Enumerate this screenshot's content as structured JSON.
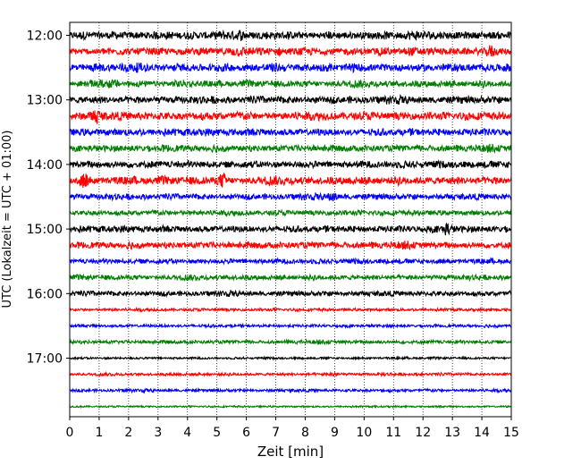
{
  "chart_data": {
    "type": "line",
    "title": "",
    "xlabel": "Zeit  [min]",
    "ylabel": "UTC (Lokalzeit = UTC + 01:00)",
    "xlim": [
      0,
      15
    ],
    "x_ticks": [
      "0",
      "1",
      "2",
      "3",
      "4",
      "5",
      "6",
      "7",
      "8",
      "9",
      "10",
      "11",
      "12",
      "13",
      "14",
      "15"
    ],
    "y_ticks": [
      "12:00",
      "13:00",
      "14:00",
      "15:00",
      "16:00",
      "17:00"
    ],
    "grid": "vertical dotted lines at each minute",
    "legend": "none",
    "color_cycle": [
      "#000000",
      "#ff0000",
      "#0000ff",
      "#008000"
    ],
    "series": [
      {
        "start": "12:00",
        "color": "#000000",
        "amplitude": 0.55
      },
      {
        "start": "12:15",
        "color": "#ff0000",
        "amplitude": 0.5
      },
      {
        "start": "12:30",
        "color": "#0000ff",
        "amplitude": 0.55
      },
      {
        "start": "12:45",
        "color": "#008000",
        "amplitude": 0.45
      },
      {
        "start": "13:00",
        "color": "#000000",
        "amplitude": 0.5
      },
      {
        "start": "13:15",
        "color": "#ff0000",
        "amplitude": 0.55
      },
      {
        "start": "13:30",
        "color": "#0000ff",
        "amplitude": 0.5
      },
      {
        "start": "13:45",
        "color": "#008000",
        "amplitude": 0.45
      },
      {
        "start": "14:00",
        "color": "#000000",
        "amplitude": 0.5
      },
      {
        "start": "14:15",
        "color": "#ff0000",
        "amplitude": 0.55
      },
      {
        "start": "14:30",
        "color": "#0000ff",
        "amplitude": 0.4
      },
      {
        "start": "14:45",
        "color": "#008000",
        "amplitude": 0.35
      },
      {
        "start": "15:00",
        "color": "#000000",
        "amplitude": 0.45
      },
      {
        "start": "15:15",
        "color": "#ff0000",
        "amplitude": 0.45
      },
      {
        "start": "15:30",
        "color": "#0000ff",
        "amplitude": 0.35
      },
      {
        "start": "15:45",
        "color": "#008000",
        "amplitude": 0.35
      },
      {
        "start": "16:00",
        "color": "#000000",
        "amplitude": 0.35
      },
      {
        "start": "16:15",
        "color": "#ff0000",
        "amplitude": 0.2
      },
      {
        "start": "16:30",
        "color": "#0000ff",
        "amplitude": 0.2
      },
      {
        "start": "16:45",
        "color": "#008000",
        "amplitude": 0.25
      },
      {
        "start": "17:00",
        "color": "#000000",
        "amplitude": 0.15
      },
      {
        "start": "17:15",
        "color": "#ff0000",
        "amplitude": 0.2
      },
      {
        "start": "17:30",
        "color": "#0000ff",
        "amplitude": 0.2
      },
      {
        "start": "17:45",
        "color": "#008000",
        "amplitude": 0.12
      }
    ],
    "bursts": [
      {
        "series": 1,
        "x": 14.3
      },
      {
        "series": 5,
        "x": 0.9
      },
      {
        "series": 9,
        "x": 0.5
      },
      {
        "series": 9,
        "x": 5.2
      },
      {
        "series": 10,
        "x": 8.9
      },
      {
        "series": 12,
        "x": 12.8
      },
      {
        "series": 21,
        "x": 9.0
      }
    ]
  }
}
